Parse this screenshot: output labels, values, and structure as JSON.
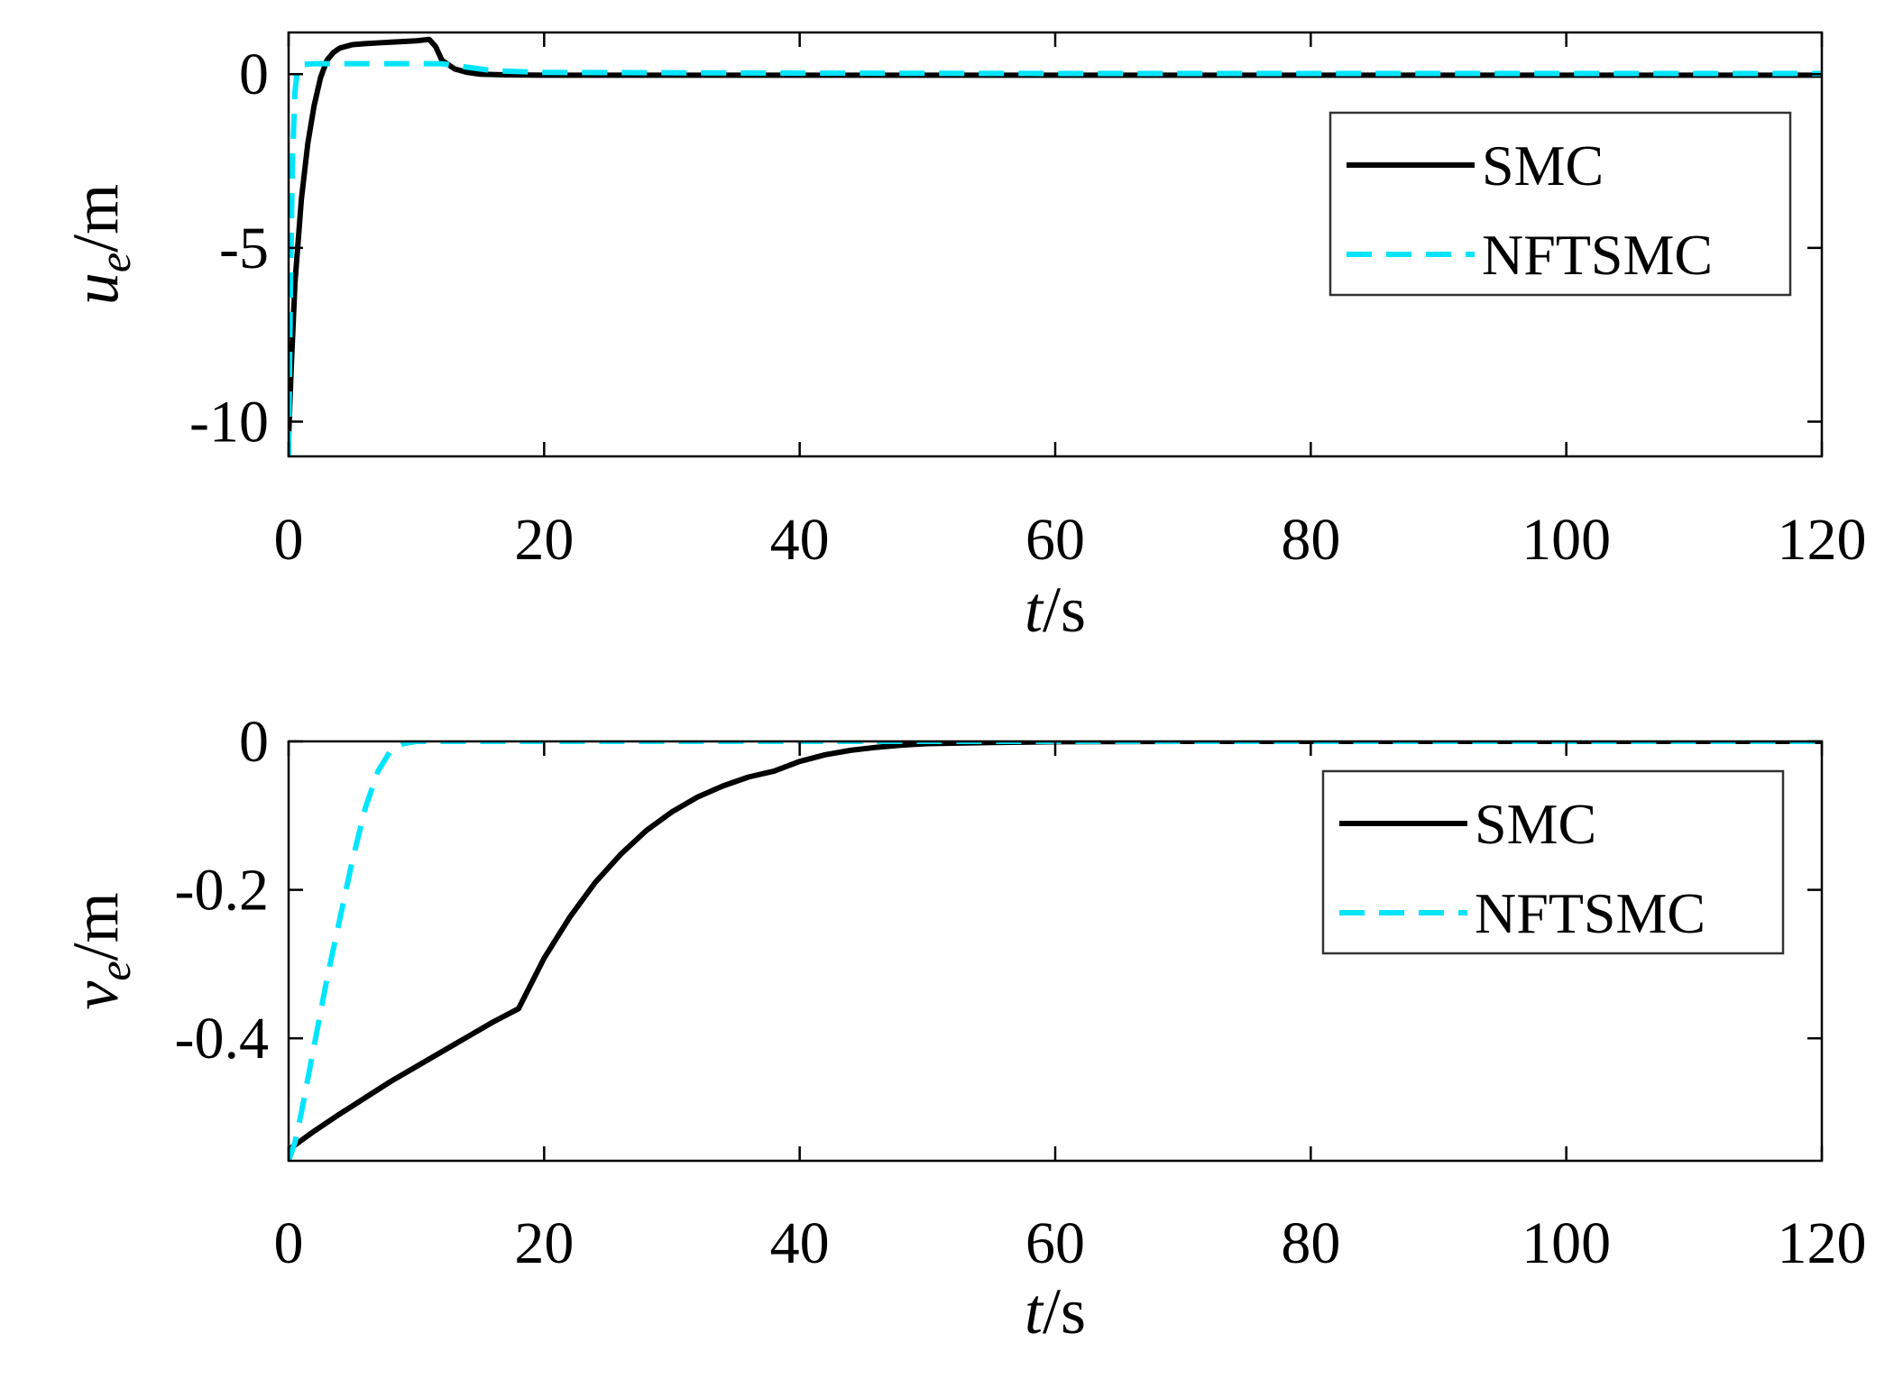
{
  "chart_data": [
    {
      "type": "line",
      "title": "",
      "xlabel": {
        "var": "t",
        "unit": "/s"
      },
      "ylabel": {
        "var": "u",
        "sub": "e",
        "unit": "/m"
      },
      "xlim": [
        0,
        120
      ],
      "ylim": [
        -11,
        1.2
      ],
      "xticks": [
        0,
        20,
        40,
        60,
        80,
        100,
        120
      ],
      "xtick_labels": [
        "0",
        "20",
        "40",
        "60",
        "80",
        "100",
        "120"
      ],
      "yticks": [
        0,
        -5,
        -10
      ],
      "ytick_labels": [
        "0",
        "-5",
        "-10"
      ],
      "grid": false,
      "legend_position": "top-right",
      "series": [
        {
          "name": "SMC",
          "color": "#000000",
          "dash": "solid",
          "x": [
            0,
            0.2,
            0.5,
            1,
            1.5,
            2,
            2.5,
            3,
            3.5,
            4,
            5,
            6,
            7,
            8,
            9,
            10,
            11,
            11.5,
            12,
            13,
            14,
            15,
            17,
            20,
            40,
            60,
            80,
            100,
            120
          ],
          "y": [
            -10.5,
            -8.5,
            -6.0,
            -3.6,
            -2.0,
            -0.9,
            -0.1,
            0.4,
            0.62,
            0.75,
            0.85,
            0.88,
            0.9,
            0.92,
            0.94,
            0.96,
            1.0,
            0.8,
            0.4,
            0.15,
            0.05,
            0.0,
            -0.02,
            -0.03,
            -0.03,
            -0.03,
            -0.03,
            -0.03,
            -0.03
          ]
        },
        {
          "name": "NFTSMC",
          "color": "#00e5ff",
          "dash": "dashed",
          "x": [
            0,
            0.15,
            0.3,
            0.5,
            0.7,
            1,
            2,
            5,
            10,
            12,
            14,
            16,
            20,
            40,
            60,
            80,
            100,
            120
          ],
          "y": [
            -11,
            -6,
            -2.5,
            -0.5,
            0.15,
            0.28,
            0.3,
            0.3,
            0.3,
            0.3,
            0.2,
            0.1,
            0.05,
            0.03,
            0.02,
            0.02,
            0.02,
            0.02
          ]
        }
      ]
    },
    {
      "type": "line",
      "title": "",
      "xlabel": {
        "var": "t",
        "unit": "/s"
      },
      "ylabel": {
        "var": "v",
        "sub": "e",
        "unit": "/m"
      },
      "xlim": [
        0,
        120
      ],
      "ylim": [
        -0.565,
        0
      ],
      "xticks": [
        0,
        20,
        40,
        60,
        80,
        100,
        120
      ],
      "xtick_labels": [
        "0",
        "20",
        "40",
        "60",
        "80",
        "100",
        "120"
      ],
      "yticks": [
        0,
        -0.2,
        -0.4
      ],
      "ytick_labels": [
        "0",
        "-0.2",
        "-0.4"
      ],
      "grid": false,
      "legend_position": "top-right",
      "series": [
        {
          "name": "SMC",
          "color": "#000000",
          "dash": "solid",
          "x": [
            0,
            2,
            4,
            6,
            8,
            10,
            12,
            14,
            16,
            18,
            20,
            22,
            24,
            26,
            28,
            30,
            32,
            34,
            36,
            38,
            40,
            42,
            44,
            46,
            48,
            50,
            55,
            60,
            70,
            80,
            100,
            120
          ],
          "y": [
            -0.55,
            -0.525,
            -0.502,
            -0.48,
            -0.458,
            -0.438,
            -0.418,
            -0.398,
            -0.378,
            -0.36,
            -0.292,
            -0.237,
            -0.19,
            -0.152,
            -0.12,
            -0.095,
            -0.075,
            -0.06,
            -0.048,
            -0.04,
            -0.027,
            -0.018,
            -0.012,
            -0.008,
            -0.005,
            -0.003,
            -0.0015,
            -0.0005,
            0,
            0,
            0,
            0
          ]
        },
        {
          "name": "NFTSMC",
          "color": "#00e5ff",
          "dash": "dashed",
          "x": [
            0,
            0.5,
            1,
            2,
            3,
            4,
            5,
            6,
            7,
            8,
            9,
            10,
            12,
            20,
            40,
            60,
            80,
            100,
            120
          ],
          "y": [
            -0.565,
            -0.54,
            -0.5,
            -0.41,
            -0.32,
            -0.24,
            -0.16,
            -0.09,
            -0.04,
            -0.012,
            -0.003,
            0,
            0,
            0,
            0,
            0,
            0,
            0,
            0
          ]
        }
      ]
    }
  ]
}
